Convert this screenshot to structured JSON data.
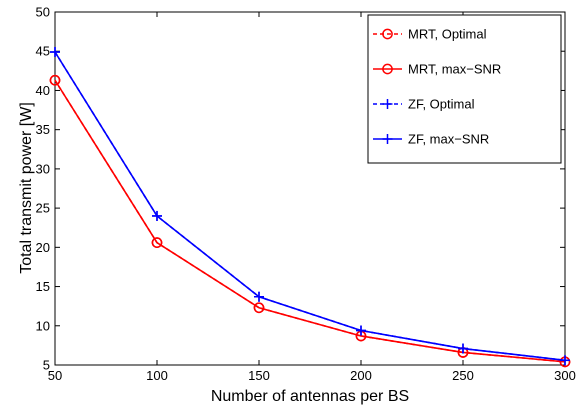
{
  "chart_data": {
    "type": "line",
    "xlabel": "Number of antennas per BS",
    "ylabel": "Total transmit power [W]",
    "xlim": [
      50,
      300
    ],
    "ylim": [
      5,
      50
    ],
    "xticks": [
      50,
      100,
      150,
      200,
      250,
      300
    ],
    "yticks": [
      5,
      10,
      15,
      20,
      25,
      30,
      35,
      40,
      45,
      50
    ],
    "grid": false,
    "legend_position": "top-right",
    "x": [
      50,
      100,
      150,
      200,
      250,
      300
    ],
    "series": [
      {
        "name": "MRT, Optimal",
        "values": [
          41.3,
          20.6,
          12.3,
          8.7,
          6.6,
          5.4
        ],
        "color": "#ff0000",
        "line": "dashed",
        "marker": "circle"
      },
      {
        "name": "MRT, max−SNR",
        "values": [
          41.3,
          20.6,
          12.3,
          8.7,
          6.6,
          5.4
        ],
        "color": "#ff0000",
        "line": "solid",
        "marker": "circle"
      },
      {
        "name": "ZF, Optimal",
        "values": [
          44.9,
          24.0,
          13.7,
          9.4,
          7.1,
          5.6
        ],
        "color": "#0000ff",
        "line": "dashed",
        "marker": "plus"
      },
      {
        "name": "ZF, max−SNR",
        "values": [
          44.9,
          24.0,
          13.7,
          9.4,
          7.1,
          5.6
        ],
        "color": "#0000ff",
        "line": "solid",
        "marker": "plus"
      }
    ]
  }
}
